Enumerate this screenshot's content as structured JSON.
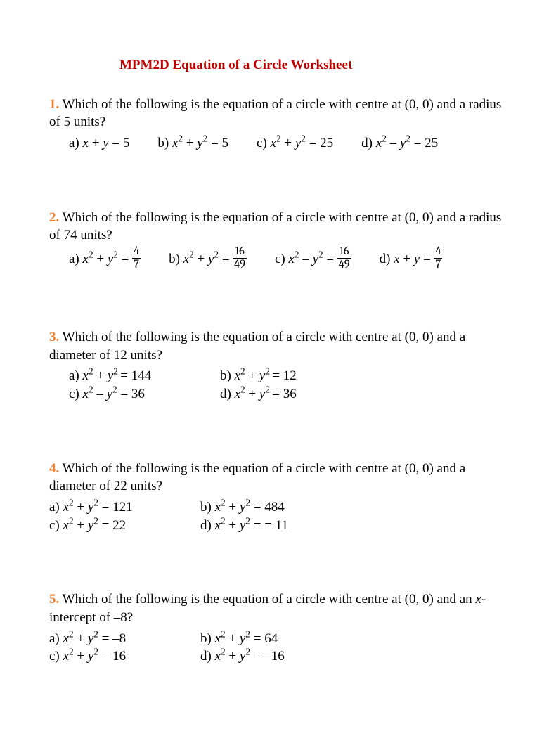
{
  "title": "MPM2D Equation of a Circle Worksheet",
  "colors": {
    "title": "#c00000",
    "number": "#ed7d31",
    "text": "#000000",
    "background": "#ffffff"
  },
  "typography": {
    "font_family": "Times New Roman",
    "body_size_pt": 14,
    "title_weight": "bold"
  },
  "questions": [
    {
      "num": "1.",
      "prompt": "Which of the following is the equation of a circle with centre at (0, 0) and a radius of 5 units?",
      "layout": "row-indent",
      "options": [
        {
          "label": "a)",
          "expr": "<span class='it'>x</span> + <span class='it'>y</span> = 5"
        },
        {
          "label": "b)",
          "expr": "<span class='it'>x</span><sup>2</sup> + <span class='it'>y</span><sup>2</sup> = 5"
        },
        {
          "label": "c)",
          "expr": "<span class='it'>x</span><sup>2</sup> + <span class='it'>y</span><sup>2</sup> = 25"
        },
        {
          "label": "d)",
          "expr": "<span class='it'>x</span><sup>2</sup> – <span class='it'>y</span><sup>2</sup> = 25"
        }
      ]
    },
    {
      "num": "2.",
      "prompt": "Which of the following is the equation of a circle with centre at (0, 0) and a radius of 74 units?",
      "layout": "row-indent",
      "options": [
        {
          "label": "a)",
          "expr": "<span class='it'>x</span><sup>2</sup> + <span class='it'>y</span><sup>2</sup> = <span class='frac'><span class='num'>4</span><span class='den'>7</span></span>"
        },
        {
          "label": "b)",
          "expr": "<span class='it'>x</span><sup>2</sup> + <span class='it'>y</span><sup>2</sup> = <span class='frac'><span class='num'>16</span><span class='den'>49</span></span>"
        },
        {
          "label": "c)",
          "expr": "<span class='it'>x</span><sup>2</sup> – <span class='it'>y</span><sup>2</sup> = <span class='frac'><span class='num'>16</span><span class='den'>49</span></span>"
        },
        {
          "label": "d)",
          "expr": "<span class='it'>x</span> + <span class='it'>y</span> = <span class='frac'><span class='num'>4</span><span class='den'>7</span></span>"
        }
      ]
    },
    {
      "num": "3.",
      "prompt": "Which of the following is the equation of a circle with centre at (0, 0) and a diameter of 12 units?",
      "layout": "grid-indent",
      "options": [
        {
          "label": "a)",
          "expr": "<span class='it'>x</span><sup>2</sup> + <span class='it'>y</span><sup>2 </sup>= 144"
        },
        {
          "label": "b)",
          "expr": "<span class='it'>x</span><sup>2</sup> + <span class='it'>y</span><sup>2 </sup>= 12"
        },
        {
          "label": "c)",
          "expr": "<span class='it'>x</span><sup>2</sup> – <span class='it'>y</span><sup>2</sup> = 36"
        },
        {
          "label": "d)",
          "expr": "<span class='it'>x</span><sup>2</sup> + <span class='it'>y</span><sup>2 </sup>= 36"
        }
      ]
    },
    {
      "num": "4.",
      "prompt": "Which of the following is the equation of a circle with centre at (0, 0) and a diameter of 22 units?",
      "layout": "grid-noindent",
      "options": [
        {
          "label": "a)",
          "expr": "<span class='it'>x</span><sup>2</sup> + <span class='it'>y</span><sup>2</sup> = 121"
        },
        {
          "label": "b)",
          "expr": "<span class='it'>x</span><sup>2</sup> + <span class='it'>y</span><sup>2</sup> = 484"
        },
        {
          "label": "c)",
          "expr": "<span class='it'>x</span><sup>2</sup> + <span class='it'>y</span><sup>2</sup> = 22"
        },
        {
          "label": "d)",
          "expr": "<span class='it'>x</span><sup>2</sup> + <span class='it'>y</span><sup>2</sup> = = 11"
        }
      ]
    },
    {
      "num": "5.",
      "prompt_html": "Which of the following is the equation of a circle with centre at (0, 0) and an <span class='it'>x</span>-intercept of –8?",
      "layout": "grid-noindent",
      "options": [
        {
          "label": "a)",
          "expr": "<span class='it'>x</span><sup>2</sup> + <span class='it'>y</span><sup>2</sup> = –8"
        },
        {
          "label": "b)",
          "expr": "<span class='it'>x</span><sup>2</sup> + <span class='it'>y</span><sup>2</sup> = 64"
        },
        {
          "label": "c)",
          "expr": "<span class='it'>x</span><sup>2</sup> + <span class='it'>y</span><sup>2</sup> = 16"
        },
        {
          "label": "d)",
          "expr": "<span class='it'>x</span><sup>2</sup> + <span class='it'>y</span><sup>2</sup> = –16"
        }
      ]
    }
  ]
}
